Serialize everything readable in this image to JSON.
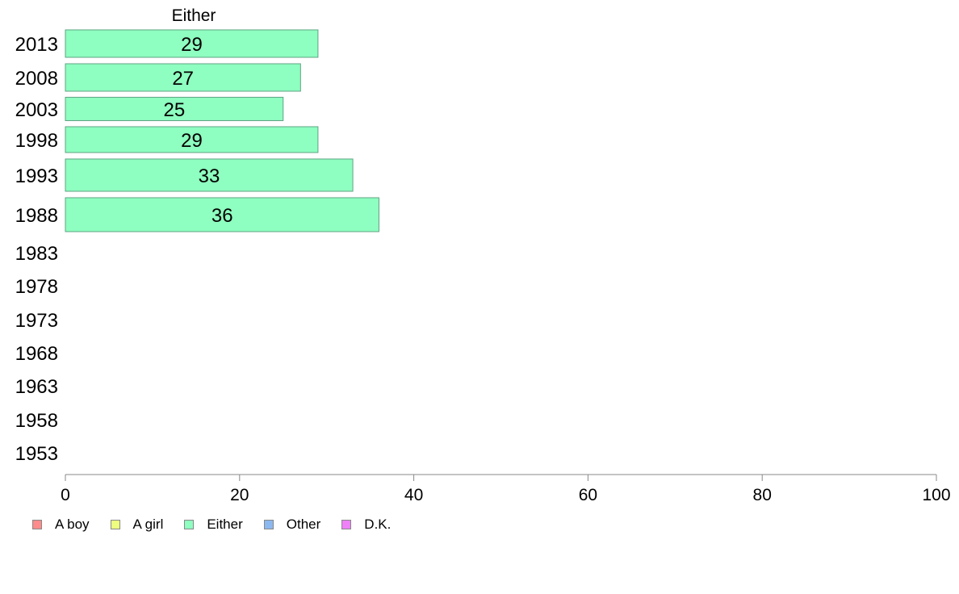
{
  "chart_data": {
    "type": "bar",
    "orientation": "horizontal",
    "categories": [
      "2013",
      "2008",
      "2003",
      "1998",
      "1993",
      "1988",
      "1983",
      "1978",
      "1973",
      "1968",
      "1963",
      "1958",
      "1953"
    ],
    "series": [
      {
        "name": "Either",
        "values": [
          29,
          27,
          25,
          29,
          33,
          36,
          null,
          null,
          null,
          null,
          null,
          null,
          null
        ],
        "color": "#8effc0"
      }
    ],
    "data_labels": [
      "29",
      "27",
      "25",
      "29",
      "33",
      "36",
      "",
      "",
      "",
      "",
      "",
      "",
      ""
    ],
    "panel_title": "Either",
    "xlim": [
      0,
      100
    ],
    "xticks": [
      "0",
      "20",
      "40",
      "60",
      "80",
      "100"
    ],
    "grid": false,
    "legend_position": "bottom-left",
    "legend": [
      {
        "label": "A boy",
        "color": "#ff8c8c"
      },
      {
        "label": "A girl",
        "color": "#eeff80"
      },
      {
        "label": "Either",
        "color": "#8effc0"
      },
      {
        "label": "Other",
        "color": "#8cb8f0"
      },
      {
        "label": "D.K.",
        "color": "#ee80f8"
      }
    ]
  }
}
